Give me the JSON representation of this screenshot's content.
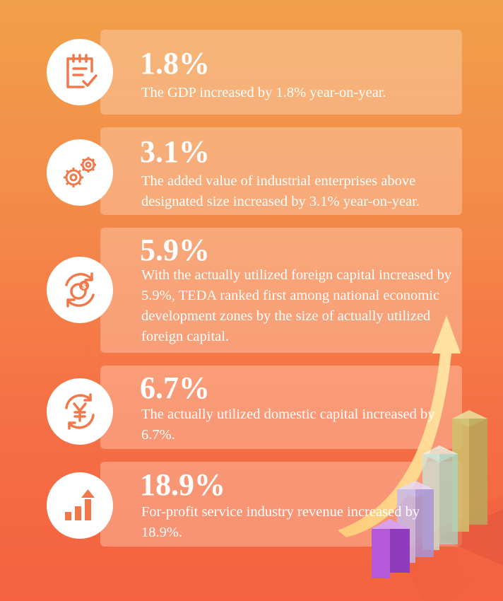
{
  "stats": [
    {
      "value": "1.8%",
      "text": "The GDP increased by 1.8% year-on-year.",
      "icon": "clipboard-check-icon"
    },
    {
      "value": "3.1%",
      "text": "The added value of industrial enterprises above designated size increased by 3.1% year-on-year.",
      "icon": "gears-icon"
    },
    {
      "value": "5.9%",
      "text": "With the actually utilized foreign capital increased by 5.9%, TEDA ranked first among national economic development zones by the size of actually utilized foreign capital.",
      "icon": "dollar-cycle-icon"
    },
    {
      "value": "6.7%",
      "text": "The actually utilized domestic capital increased by 6.7%.",
      "icon": "yuan-cycle-icon"
    },
    {
      "value": "18.9%",
      "text": "For-profit service industry revenue increased by 18.9%.",
      "icon": "growth-bars-icon"
    }
  ],
  "colors": {
    "accent": "#f0784a",
    "text": "#ffffff"
  }
}
